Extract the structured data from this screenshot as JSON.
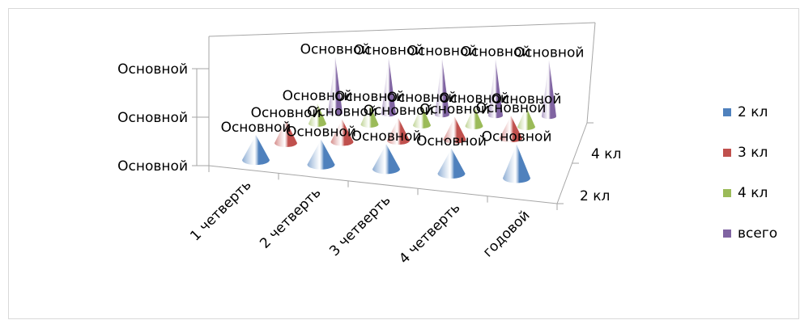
{
  "chart_data": {
    "type": "3d-cone",
    "categories": [
      "1 четверть",
      "2 четверть",
      "3 четверть",
      "4 четверть",
      "годовой"
    ],
    "depth_labels": [
      "2 кл",
      "4 кл"
    ],
    "y_tick_labels": [
      "Основной",
      "Основной",
      "Основной"
    ],
    "data_label": "Основной",
    "series": [
      {
        "name": "2 кл",
        "color": "#4f81bd",
        "values": [
          1,
          1,
          1,
          1,
          1.35
        ]
      },
      {
        "name": "3 кл",
        "color": "#c0504d",
        "values": [
          1,
          1,
          1,
          1,
          1
        ]
      },
      {
        "name": "4 кл",
        "color": "#9bbb59",
        "values": [
          1,
          1,
          1,
          1,
          1
        ]
      },
      {
        "name": "всего",
        "color": "#8064a2",
        "values": [
          3,
          3,
          3,
          3,
          3
        ]
      }
    ],
    "legend_position": "right"
  }
}
